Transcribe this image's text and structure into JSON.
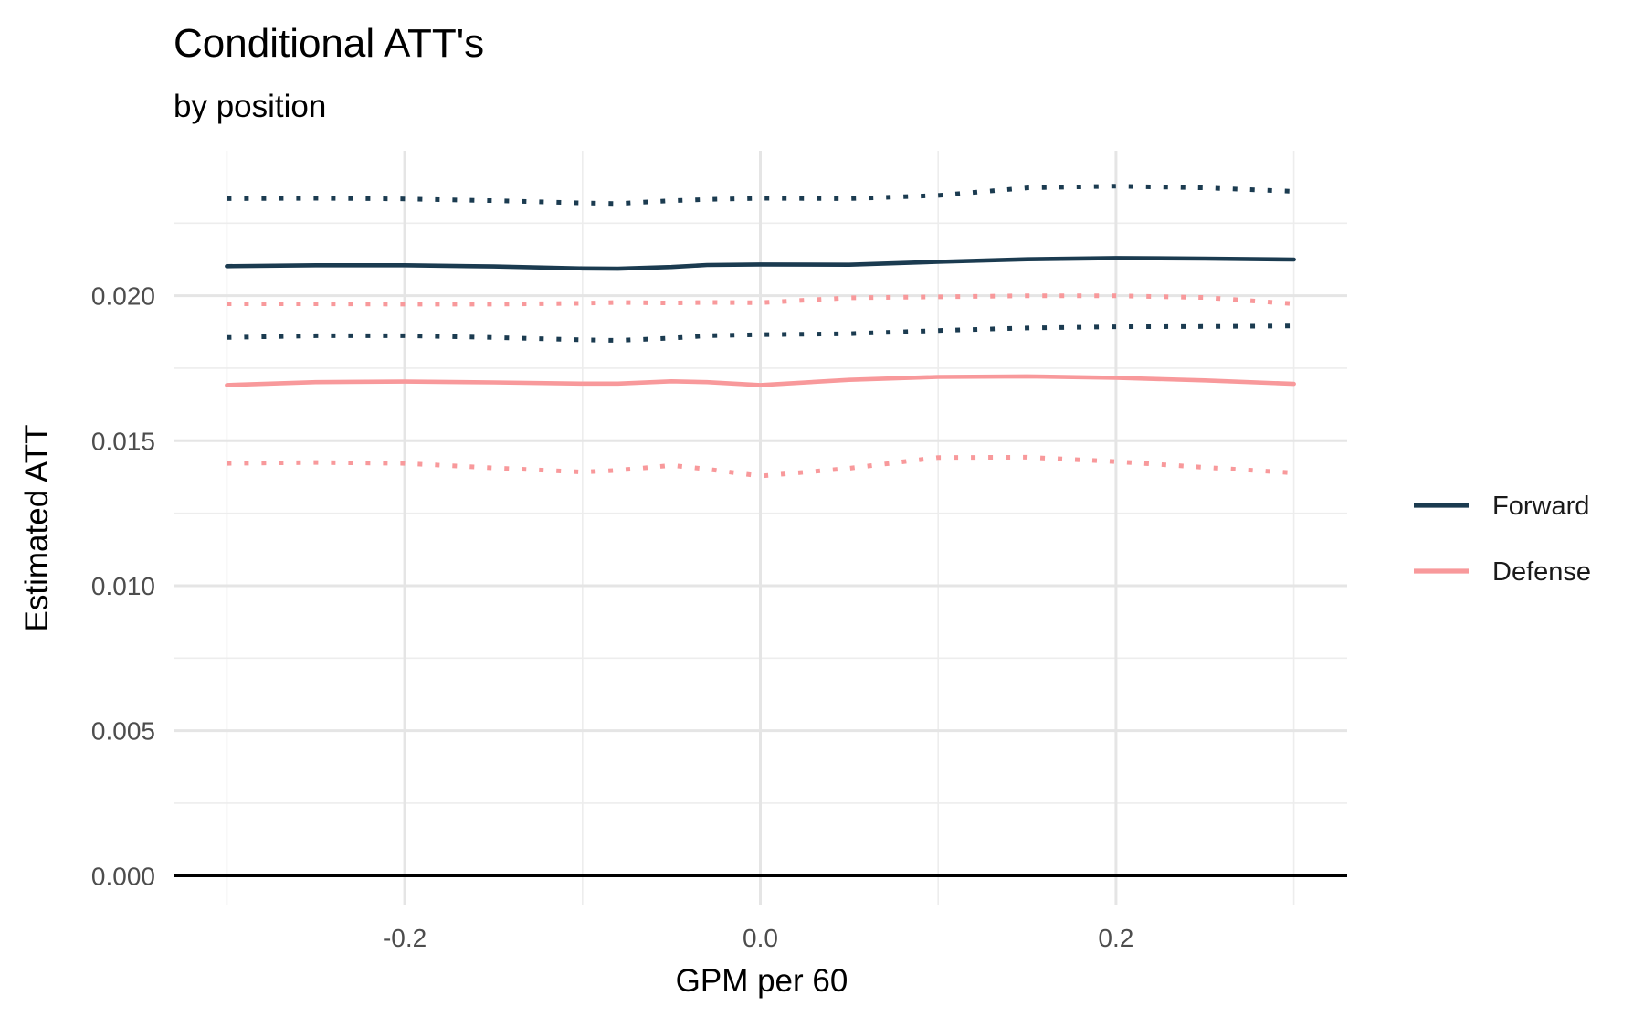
{
  "chart_data": {
    "type": "line",
    "title": "Conditional ATT's",
    "subtitle": "by position",
    "xlabel": "GPM per 60",
    "ylabel": "Estimated ATT",
    "xlim": [
      -0.33,
      0.33
    ],
    "ylim": [
      -0.001,
      0.025
    ],
    "x_ticks": [
      -0.2,
      0.0,
      0.2
    ],
    "x_tick_labels": [
      "-0.2",
      "0.0",
      "0.2"
    ],
    "y_ticks": [
      0.0,
      0.005,
      0.01,
      0.015,
      0.02
    ],
    "y_tick_labels": [
      "0.000",
      "0.005",
      "0.010",
      "0.015",
      "0.020"
    ],
    "grid": true,
    "zero_line": 0.0,
    "legend_position": "right",
    "series": [
      {
        "name": "Forward",
        "color": "#1b3b50",
        "x": [
          -0.3,
          -0.25,
          -0.2,
          -0.15,
          -0.1,
          -0.08,
          -0.05,
          -0.03,
          0.0,
          0.05,
          0.1,
          0.15,
          0.2,
          0.25,
          0.3
        ],
        "estimate": [
          0.02102,
          0.02105,
          0.02105,
          0.02101,
          0.02094,
          0.02093,
          0.02099,
          0.02106,
          0.02108,
          0.02107,
          0.02117,
          0.02126,
          0.0213,
          0.02128,
          0.02125
        ],
        "lower": [
          0.01856,
          0.01862,
          0.01862,
          0.01856,
          0.01848,
          0.01846,
          0.01854,
          0.01862,
          0.01866,
          0.01869,
          0.0188,
          0.01889,
          0.01893,
          0.01894,
          0.01896
        ],
        "upper": [
          0.02335,
          0.02336,
          0.02334,
          0.02328,
          0.0232,
          0.02318,
          0.02328,
          0.02332,
          0.02336,
          0.02335,
          0.02346,
          0.02372,
          0.02378,
          0.02372,
          0.0236
        ]
      },
      {
        "name": "Defense",
        "color": "#f8999b",
        "x": [
          -0.3,
          -0.25,
          -0.2,
          -0.15,
          -0.1,
          -0.08,
          -0.05,
          -0.03,
          0.0,
          0.05,
          0.1,
          0.15,
          0.2,
          0.25,
          0.3
        ],
        "estimate": [
          0.01692,
          0.01702,
          0.01704,
          0.01701,
          0.01697,
          0.01697,
          0.01705,
          0.01702,
          0.01692,
          0.0171,
          0.0172,
          0.01722,
          0.01717,
          0.01708,
          0.01696
        ],
        "lower": [
          0.01422,
          0.01425,
          0.01422,
          0.01406,
          0.01392,
          0.01398,
          0.01415,
          0.01402,
          0.01378,
          0.01405,
          0.01442,
          0.01443,
          0.01428,
          0.01408,
          0.01389
        ],
        "upper": [
          0.01972,
          0.01972,
          0.01971,
          0.01971,
          0.01974,
          0.01977,
          0.01975,
          0.01977,
          0.01976,
          0.01993,
          0.01996,
          0.02,
          0.02,
          0.01994,
          0.01972
        ]
      }
    ]
  }
}
